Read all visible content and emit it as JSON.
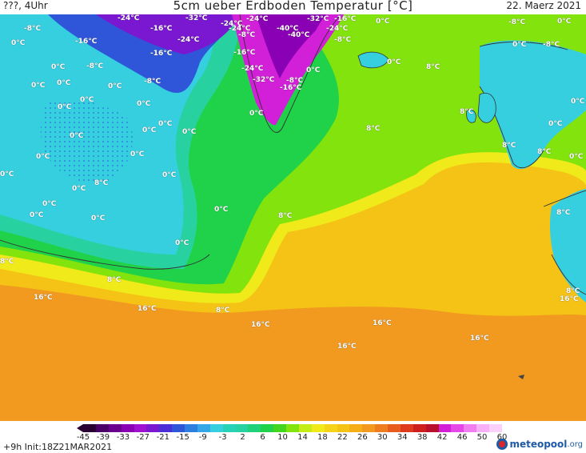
{
  "header": {
    "left": "???, 4Uhr",
    "title": "5cm ueber Erdboden Temperatur [°C]",
    "date": "22. Maerz 2021"
  },
  "colors": {
    "sea_orange": "#f29a1f",
    "subtropic_gold": "#f5c315",
    "yellow": "#f0ea1a",
    "lime": "#83e30c",
    "green": "#1fd24a",
    "aqua": "#27d2a0",
    "cyan": "#35cfe0",
    "blue": "#2f56d8",
    "purple": "#7a17d0",
    "magenta": "#d21fd8",
    "coast": "#333333"
  },
  "colorbar": {
    "colors": [
      "#2a0033",
      "#4a0066",
      "#6b008f",
      "#8a00b4",
      "#a010d0",
      "#7a17d0",
      "#4a2fd8",
      "#2f56d8",
      "#2f7fe0",
      "#35a6e6",
      "#35cfe0",
      "#27d2b6",
      "#27d2a0",
      "#1fd27a",
      "#1fd24a",
      "#44d61e",
      "#83e30c",
      "#c4ec16",
      "#f0ea1a",
      "#f5d316",
      "#f5c315",
      "#f5ae18",
      "#f29a1f",
      "#ee7d20",
      "#e85c1f",
      "#de3a1e",
      "#cf1e1e",
      "#b8102c",
      "#d21fd8",
      "#e648e8",
      "#f07ef0",
      "#f8b0f8",
      "#fbd0fb"
    ],
    "ticks": [
      "-45",
      "-39",
      "-33",
      "-27",
      "-21",
      "-15",
      "-9",
      "-3",
      "2",
      "6",
      "10",
      "14",
      "18",
      "22",
      "26",
      "30",
      "34",
      "38",
      "42",
      "46",
      "50",
      "60"
    ]
  },
  "isotherm_labels": [
    {
      "id": "l1",
      "text": "-24°C"
    },
    {
      "id": "l2",
      "text": "-32°C"
    },
    {
      "id": "l3",
      "text": "-24°C"
    },
    {
      "id": "l4",
      "text": "-24°C"
    },
    {
      "id": "l5",
      "text": "-32°C"
    },
    {
      "id": "l6",
      "text": "-16°C"
    },
    {
      "id": "l7",
      "text": "-8°C"
    },
    {
      "id": "l8",
      "text": "-16°C"
    },
    {
      "id": "l9",
      "text": "-24°C"
    },
    {
      "id": "l10",
      "text": "-8°C"
    },
    {
      "id": "l11",
      "text": "-40°C"
    },
    {
      "id": "l12",
      "text": "-40°C"
    },
    {
      "id": "l13",
      "text": "-24°C"
    },
    {
      "id": "l14",
      "text": "-8°C"
    },
    {
      "id": "l15",
      "text": "0°C"
    },
    {
      "id": "l16",
      "text": "-8°C"
    },
    {
      "id": "l17",
      "text": "0°C"
    },
    {
      "id": "l18",
      "text": "-16°C"
    },
    {
      "id": "l19",
      "text": "-16°C"
    },
    {
      "id": "l20",
      "text": "-16°C"
    },
    {
      "id": "l21",
      "text": "0°C"
    },
    {
      "id": "l22",
      "text": "0°C"
    },
    {
      "id": "l23",
      "text": "-8°C"
    },
    {
      "id": "l24",
      "text": "-24°C"
    },
    {
      "id": "l25",
      "text": "-24°C"
    },
    {
      "id": "l26",
      "text": "0°C"
    },
    {
      "id": "l27",
      "text": "8°C"
    },
    {
      "id": "l28",
      "text": "0°C"
    },
    {
      "id": "l29",
      "text": "-8°C"
    },
    {
      "id": "l30",
      "text": "-32°C"
    },
    {
      "id": "l31",
      "text": "-8°C"
    },
    {
      "id": "l32",
      "text": "-16°C"
    },
    {
      "id": "l33",
      "text": "0°C"
    },
    {
      "id": "l34",
      "text": "0°C"
    },
    {
      "id": "l35",
      "text": "0°C"
    },
    {
      "id": "l36",
      "text": "0°C"
    },
    {
      "id": "l37",
      "text": "-8°C"
    },
    {
      "id": "l38",
      "text": "0°C"
    },
    {
      "id": "l39",
      "text": "8°C"
    },
    {
      "id": "l40",
      "text": "0°C"
    },
    {
      "id": "l41",
      "text": "0°C"
    },
    {
      "id": "l42",
      "text": "0°C"
    },
    {
      "id": "l43",
      "text": "0°C"
    },
    {
      "id": "l44",
      "text": "0°C"
    },
    {
      "id": "l45",
      "text": "8°C"
    },
    {
      "id": "l46",
      "text": "0°C"
    },
    {
      "id": "l47",
      "text": "0°C"
    },
    {
      "id": "l48",
      "text": "8°C"
    },
    {
      "id": "l49",
      "text": "0°C"
    },
    {
      "id": "l50",
      "text": "8°C"
    },
    {
      "id": "l51",
      "text": "0°C"
    },
    {
      "id": "l52",
      "text": "0°C"
    },
    {
      "id": "l53",
      "text": "0°C"
    },
    {
      "id": "l54",
      "text": "0°C"
    },
    {
      "id": "l55",
      "text": "0°C"
    },
    {
      "id": "l56",
      "text": "0°C"
    },
    {
      "id": "l57",
      "text": "8°C"
    },
    {
      "id": "l58",
      "text": "8°C"
    },
    {
      "id": "l59",
      "text": "0°C"
    },
    {
      "id": "l60",
      "text": "0°C"
    },
    {
      "id": "l61",
      "text": "0°C"
    },
    {
      "id": "l62",
      "text": "0°C"
    },
    {
      "id": "l63",
      "text": "0°C"
    },
    {
      "id": "l64",
      "text": "8°C"
    },
    {
      "id": "l65",
      "text": "0°C"
    },
    {
      "id": "l66",
      "text": "8°C"
    },
    {
      "id": "l67",
      "text": "8°C"
    },
    {
      "id": "l68",
      "text": "16°C"
    },
    {
      "id": "l69",
      "text": "16°C"
    },
    {
      "id": "l70",
      "text": "8°C"
    },
    {
      "id": "l71",
      "text": "8°C"
    },
    {
      "id": "l72",
      "text": "16°C"
    },
    {
      "id": "l73",
      "text": "16°C"
    },
    {
      "id": "l74",
      "text": "16°C"
    },
    {
      "id": "l75",
      "text": "16°C"
    },
    {
      "id": "l76",
      "text": "16°C"
    }
  ],
  "footer": {
    "run": "+9h  Init:18Z21MAR2021",
    "brand": "meteopool",
    "brand_suffix": ".org"
  }
}
